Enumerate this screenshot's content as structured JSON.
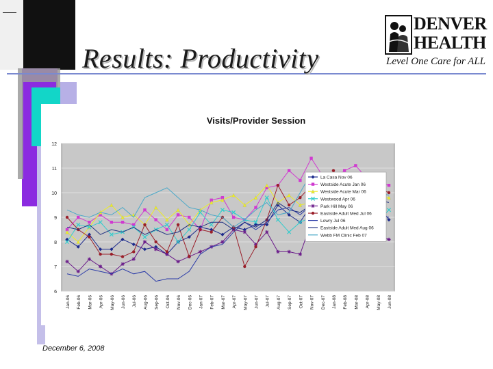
{
  "slide": {
    "title": "Results: Productivity",
    "date": "December 6, 2008"
  },
  "logo": {
    "name_line1": "DENVER",
    "name_line2": "HEALTH",
    "tagline": "Level One Care for ALL"
  },
  "colors": {
    "accent_purple": "#8b2be0",
    "accent_teal": "#12d6c8",
    "accent_lavender": "#b7b0e6",
    "title_rule": "#7a8ad0",
    "plot_bg": "#c8c8c8"
  },
  "chart_data": {
    "type": "line",
    "title": "Visits/Provider Session",
    "ylim": [
      6,
      12
    ],
    "yticks": [
      "6",
      "7",
      "8",
      "9",
      "10",
      "11",
      "12"
    ],
    "grid": true,
    "legend_position": "right",
    "categories": [
      "Jan-06",
      "Feb-06",
      "Mar-06",
      "Apr-06",
      "May-06",
      "Jun-06",
      "Jul-06",
      "Aug-06",
      "Sep-06",
      "Oct-06",
      "Nov-06",
      "Dec-06",
      "Jan-07",
      "Feb-07",
      "Mar-07",
      "Apr-07",
      "May-07",
      "Jun-07",
      "Jul-07",
      "Aug-07",
      "Sep-07",
      "Oct-07",
      "Nov-07",
      "Dec-07",
      "Jan-08",
      "Feb-08",
      "Mar-08",
      "Apr-08",
      "May-08",
      "Jun-08"
    ],
    "series": [
      {
        "name": "La Casa Nov 06",
        "color": "#1c2a8c",
        "marker": "diamond",
        "values": [
          8.1,
          7.8,
          8.3,
          7.7,
          7.7,
          8.1,
          7.9,
          7.7,
          7.8,
          7.5,
          8.0,
          8.2,
          8.6,
          8.5,
          8.3,
          8.6,
          8.5,
          8.7,
          8.7,
          9.5,
          9.1,
          8.8,
          9.5,
          8.2,
          9.3,
          9.8,
          9.6,
          9.8,
          9.5,
          8.9
        ]
      },
      {
        "name": "Westside Acute Jan 06",
        "color": "#d03ad0",
        "marker": "square",
        "values": [
          8.5,
          9.0,
          8.8,
          9.1,
          8.8,
          8.8,
          8.7,
          9.3,
          8.9,
          8.5,
          9.1,
          9.0,
          8.5,
          9.7,
          9.8,
          9.0,
          8.9,
          9.4,
          10.2,
          10.3,
          10.9,
          10.5,
          11.4,
          10.7,
          10.5,
          10.9,
          11.1,
          10.6,
          10.4,
          10.3
        ]
      },
      {
        "name": "Westside Acute Mar 06",
        "color": "#eeee22",
        "marker": "triangle",
        "values": [
          8.4,
          8.0,
          8.6,
          9.2,
          9.5,
          9.0,
          9.1,
          8.7,
          9.4,
          8.9,
          9.3,
          8.7,
          9.3,
          9.6,
          9.7,
          9.9,
          9.5,
          9.8,
          10.3,
          9.6,
          9.9,
          9.5,
          9.6,
          9.8,
          10.5,
          10.6,
          10.3,
          10.0,
          9.9,
          9.8
        ]
      },
      {
        "name": "Westwood Apr 06",
        "color": "#33cccc",
        "marker": "x",
        "values": [
          8.0,
          8.7,
          8.6,
          8.8,
          8.3,
          8.4,
          8.6,
          8.2,
          8.5,
          8.7,
          8.0,
          8.5,
          9.2,
          8.7,
          9.3,
          9.2,
          8.9,
          8.8,
          9.8,
          8.9,
          8.4,
          8.8,
          9.0,
          9.5,
          8.9,
          9.0,
          9.5,
          9.7,
          8.8,
          9.3
        ]
      },
      {
        "name": "Park Hill May 06",
        "color": "#6a1a8a",
        "marker": "star",
        "values": [
          7.2,
          6.8,
          7.3,
          7.0,
          6.7,
          7.1,
          7.3,
          8.0,
          7.7,
          7.5,
          7.2,
          7.4,
          7.6,
          7.8,
          8.0,
          8.5,
          8.4,
          7.9,
          8.4,
          7.6,
          7.6,
          7.5,
          8.8,
          8.6,
          9.5,
          9.4,
          9.0,
          8.4,
          8.2,
          8.1
        ]
      },
      {
        "name": "Eastside Adult Med Jul 06",
        "color": "#9a1f2a",
        "marker": "circle",
        "values": [
          9.0,
          8.5,
          8.2,
          7.5,
          7.5,
          7.4,
          7.6,
          8.7,
          8.0,
          7.6,
          8.7,
          7.4,
          8.5,
          8.4,
          9.0,
          8.6,
          7.0,
          7.8,
          8.9,
          10.3,
          9.5,
          9.8,
          10.3,
          8.7,
          10.9,
          9.8,
          10.5,
          9.9,
          10.2,
          10.0
        ]
      },
      {
        "name": "Lowry Jul 06",
        "color": "#2a3aa8",
        "marker": "none",
        "values": [
          6.7,
          6.6,
          6.9,
          6.8,
          6.7,
          6.9,
          6.7,
          6.8,
          6.4,
          6.5,
          6.5,
          6.8,
          7.5,
          7.8,
          7.9,
          8.4,
          8.8,
          8.5,
          8.8,
          9.3,
          9.4,
          9.1,
          9.5,
          9.2,
          9.3,
          9.5,
          9.6,
          9.4,
          9.1,
          9.0
        ]
      },
      {
        "name": "Eastside Adult Med Aug 06",
        "color": "#1f2f80",
        "marker": "none",
        "values": [
          8.6,
          8.5,
          8.7,
          8.3,
          8.5,
          8.4,
          8.6,
          8.3,
          8.5,
          8.3,
          8.4,
          8.7,
          8.6,
          8.8,
          8.8,
          8.5,
          8.8,
          8.6,
          8.9,
          9.6,
          9.3,
          9.2,
          9.5,
          9.3,
          9.6,
          9.7,
          9.7,
          9.9,
          9.7,
          9.6
        ]
      },
      {
        "name": "Webb FM Clinic Feb 07",
        "color": "#4aa8c8",
        "marker": "none",
        "values": [
          9.3,
          9.1,
          9.0,
          9.2,
          9.1,
          9.4,
          9.0,
          9.8,
          10.0,
          10.2,
          9.8,
          9.4,
          9.3,
          9.1,
          9.0,
          8.6,
          8.9,
          9.3,
          9.6,
          9.1,
          9.2,
          10.0,
          10.8,
          10.5,
          10.1,
          10.4,
          10.3,
          10.2,
          10.0,
          9.9
        ]
      }
    ]
  }
}
